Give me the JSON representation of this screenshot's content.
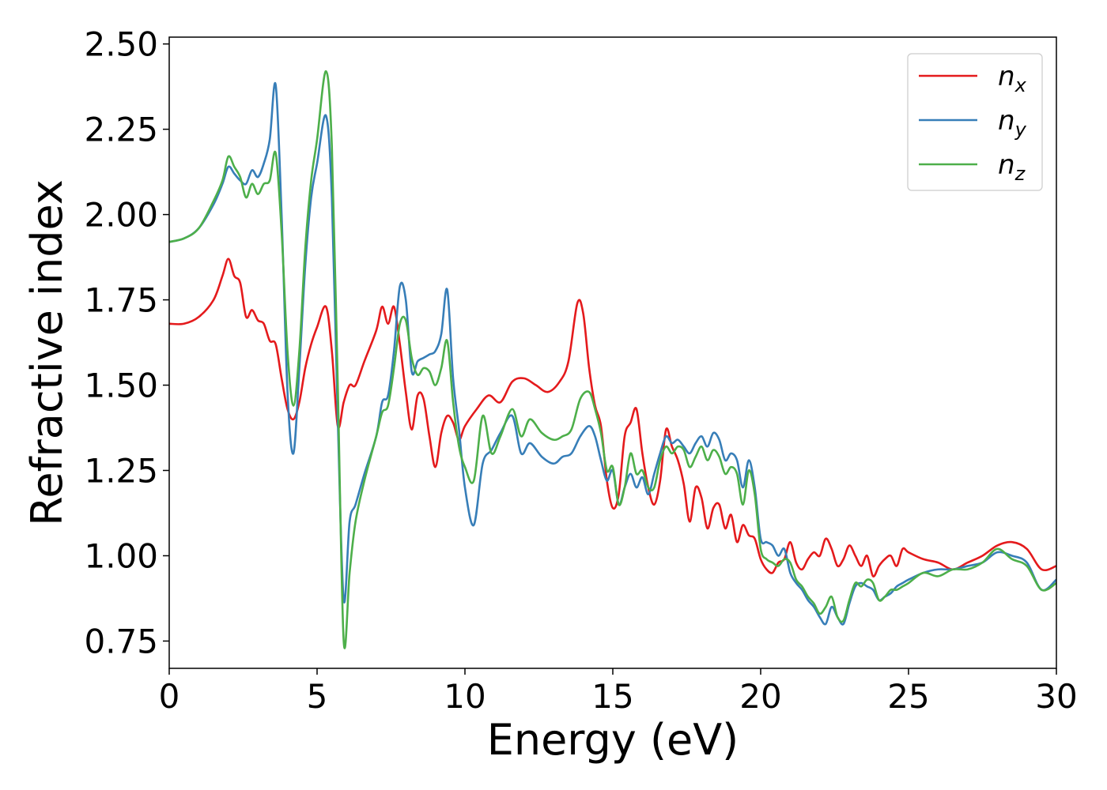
{
  "chart_data": {
    "type": "line",
    "xlabel": "Energy (eV)",
    "ylabel": "Refractive index",
    "xlim": [
      0,
      30
    ],
    "ylim": [
      0.67,
      2.52
    ],
    "xticks": [
      0,
      5,
      10,
      15,
      20,
      25,
      30
    ],
    "xtick_labels": [
      "0",
      "5",
      "10",
      "15",
      "20",
      "25",
      "30"
    ],
    "yticks": [
      0.75,
      1.0,
      1.25,
      1.5,
      1.75,
      2.0,
      2.25,
      2.5
    ],
    "ytick_labels": [
      "0.75",
      "1.00",
      "1.25",
      "1.50",
      "1.75",
      "2.00",
      "2.25",
      "2.50"
    ],
    "grid": false,
    "legend_position": "top-right",
    "series": [
      {
        "name": "n",
        "subscript": "x",
        "color": "#e41a1c",
        "x": [
          0,
          0.5,
          1.0,
          1.5,
          1.8,
          2.0,
          2.2,
          2.4,
          2.6,
          2.8,
          3.0,
          3.2,
          3.4,
          3.6,
          3.8,
          4.0,
          4.2,
          4.4,
          4.6,
          4.8,
          5.0,
          5.3,
          5.5,
          5.7,
          5.9,
          6.1,
          6.3,
          6.6,
          7.0,
          7.2,
          7.4,
          7.6,
          7.8,
          8.0,
          8.2,
          8.4,
          8.6,
          8.8,
          9.0,
          9.2,
          9.4,
          9.6,
          9.8,
          10.0,
          10.4,
          10.8,
          11.2,
          11.6,
          12.0,
          12.4,
          12.8,
          13.2,
          13.5,
          13.8,
          14.0,
          14.2,
          14.4,
          14.6,
          14.8,
          15.0,
          15.2,
          15.4,
          15.6,
          15.8,
          16.0,
          16.2,
          16.4,
          16.6,
          16.8,
          17.0,
          17.2,
          17.4,
          17.6,
          17.8,
          18.0,
          18.2,
          18.4,
          18.6,
          18.8,
          19.0,
          19.2,
          19.4,
          19.6,
          19.8,
          20.0,
          20.2,
          20.4,
          20.6,
          20.8,
          21.0,
          21.2,
          21.4,
          21.6,
          21.8,
          22.0,
          22.2,
          22.4,
          22.6,
          22.8,
          23.0,
          23.2,
          23.4,
          23.6,
          23.8,
          24.0,
          24.2,
          24.4,
          24.6,
          24.8,
          25.0,
          25.5,
          26.0,
          26.5,
          27.0,
          27.5,
          28.0,
          28.5,
          29.0,
          29.5,
          30.0
        ],
        "values": [
          1.68,
          1.68,
          1.7,
          1.75,
          1.82,
          1.87,
          1.82,
          1.8,
          1.7,
          1.72,
          1.69,
          1.68,
          1.63,
          1.62,
          1.52,
          1.43,
          1.4,
          1.45,
          1.55,
          1.62,
          1.67,
          1.73,
          1.6,
          1.38,
          1.45,
          1.5,
          1.5,
          1.57,
          1.66,
          1.73,
          1.68,
          1.73,
          1.62,
          1.48,
          1.37,
          1.47,
          1.46,
          1.35,
          1.26,
          1.36,
          1.41,
          1.39,
          1.34,
          1.38,
          1.43,
          1.47,
          1.45,
          1.51,
          1.52,
          1.5,
          1.48,
          1.51,
          1.57,
          1.74,
          1.71,
          1.55,
          1.44,
          1.38,
          1.22,
          1.14,
          1.18,
          1.35,
          1.39,
          1.43,
          1.3,
          1.2,
          1.15,
          1.22,
          1.37,
          1.32,
          1.28,
          1.21,
          1.1,
          1.2,
          1.17,
          1.08,
          1.14,
          1.15,
          1.08,
          1.12,
          1.04,
          1.09,
          1.06,
          1.05,
          0.99,
          0.96,
          0.95,
          0.98,
          0.99,
          1.04,
          0.98,
          0.96,
          0.99,
          1.01,
          1.0,
          1.05,
          1.02,
          0.97,
          0.99,
          1.03,
          1.0,
          0.97,
          1.0,
          0.94,
          0.97,
          0.99,
          1.0,
          0.97,
          1.02,
          1.01,
          0.99,
          0.98,
          0.96,
          0.98,
          1.0,
          1.03,
          1.04,
          1.02,
          0.96,
          0.97
        ]
      },
      {
        "name": "n",
        "subscript": "y",
        "color": "#377eb8",
        "x": [
          0,
          0.5,
          1.0,
          1.5,
          1.8,
          2.0,
          2.2,
          2.4,
          2.6,
          2.8,
          3.0,
          3.2,
          3.4,
          3.6,
          3.8,
          4.0,
          4.2,
          4.4,
          4.6,
          4.8,
          5.0,
          5.3,
          5.5,
          5.7,
          5.9,
          6.1,
          6.3,
          6.6,
          7.0,
          7.2,
          7.4,
          7.6,
          7.8,
          8.0,
          8.2,
          8.4,
          8.6,
          8.8,
          9.0,
          9.2,
          9.4,
          9.6,
          9.8,
          10.0,
          10.3,
          10.6,
          10.9,
          11.2,
          11.6,
          11.9,
          12.2,
          12.6,
          13.0,
          13.3,
          13.6,
          13.9,
          14.2,
          14.4,
          14.6,
          14.8,
          15.0,
          15.2,
          15.4,
          15.6,
          15.8,
          16.0,
          16.2,
          16.4,
          16.6,
          16.8,
          17.0,
          17.2,
          17.4,
          17.6,
          17.8,
          18.0,
          18.2,
          18.4,
          18.6,
          18.8,
          19.0,
          19.2,
          19.4,
          19.6,
          19.8,
          20.0,
          20.2,
          20.4,
          20.6,
          20.8,
          21.0,
          21.2,
          21.4,
          21.6,
          21.8,
          22.0,
          22.2,
          22.4,
          22.6,
          22.8,
          23.0,
          23.2,
          23.4,
          23.6,
          23.8,
          24.0,
          24.2,
          24.4,
          24.6,
          24.8,
          25.0,
          25.5,
          26.0,
          26.5,
          27.0,
          27.5,
          28.0,
          28.5,
          29.0,
          29.5,
          30.0
        ],
        "values": [
          1.92,
          1.93,
          1.96,
          2.03,
          2.09,
          2.14,
          2.12,
          2.1,
          2.09,
          2.13,
          2.11,
          2.15,
          2.22,
          2.38,
          2.0,
          1.48,
          1.3,
          1.55,
          1.85,
          2.05,
          2.15,
          2.29,
          2.05,
          1.4,
          0.87,
          1.1,
          1.15,
          1.24,
          1.35,
          1.45,
          1.47,
          1.6,
          1.79,
          1.75,
          1.54,
          1.57,
          1.58,
          1.59,
          1.6,
          1.65,
          1.78,
          1.52,
          1.37,
          1.2,
          1.09,
          1.27,
          1.31,
          1.36,
          1.41,
          1.3,
          1.33,
          1.29,
          1.27,
          1.29,
          1.3,
          1.35,
          1.38,
          1.35,
          1.28,
          1.22,
          1.25,
          1.15,
          1.2,
          1.24,
          1.2,
          1.23,
          1.18,
          1.24,
          1.3,
          1.35,
          1.33,
          1.34,
          1.32,
          1.3,
          1.33,
          1.35,
          1.32,
          1.36,
          1.34,
          1.28,
          1.3,
          1.28,
          1.2,
          1.28,
          1.2,
          1.05,
          1.04,
          1.03,
          1.0,
          1.02,
          0.95,
          0.92,
          0.9,
          0.87,
          0.85,
          0.82,
          0.8,
          0.85,
          0.82,
          0.8,
          0.86,
          0.91,
          0.92,
          0.91,
          0.9,
          0.87,
          0.88,
          0.89,
          0.91,
          0.92,
          0.93,
          0.95,
          0.96,
          0.96,
          0.97,
          0.98,
          1.01,
          1.0,
          0.98,
          0.9,
          0.93
        ]
      },
      {
        "name": "n",
        "subscript": "z",
        "color": "#4daf4a",
        "x": [
          0,
          0.5,
          1.0,
          1.5,
          1.8,
          2.0,
          2.2,
          2.4,
          2.6,
          2.8,
          3.0,
          3.2,
          3.4,
          3.6,
          3.8,
          4.0,
          4.2,
          4.4,
          4.6,
          4.8,
          5.0,
          5.3,
          5.5,
          5.7,
          5.9,
          6.1,
          6.3,
          6.6,
          7.0,
          7.2,
          7.4,
          7.6,
          7.8,
          8.0,
          8.2,
          8.4,
          8.6,
          8.8,
          9.0,
          9.2,
          9.4,
          9.6,
          9.8,
          10.0,
          10.3,
          10.6,
          10.9,
          11.2,
          11.6,
          11.9,
          12.2,
          12.6,
          13.0,
          13.3,
          13.6,
          13.9,
          14.2,
          14.4,
          14.6,
          14.8,
          15.0,
          15.2,
          15.4,
          15.6,
          15.8,
          16.0,
          16.2,
          16.4,
          16.6,
          16.8,
          17.0,
          17.2,
          17.4,
          17.6,
          17.8,
          18.0,
          18.2,
          18.4,
          18.6,
          18.8,
          19.0,
          19.2,
          19.4,
          19.6,
          19.8,
          20.0,
          20.2,
          20.4,
          20.6,
          20.8,
          21.0,
          21.2,
          21.4,
          21.6,
          21.8,
          22.0,
          22.2,
          22.4,
          22.6,
          22.8,
          23.0,
          23.2,
          23.4,
          23.6,
          23.8,
          24.0,
          24.2,
          24.4,
          24.6,
          24.8,
          25.0,
          25.5,
          26.0,
          26.5,
          27.0,
          27.5,
          28.0,
          28.5,
          29.0,
          29.5,
          30.0
        ],
        "values": [
          1.92,
          1.93,
          1.96,
          2.04,
          2.1,
          2.17,
          2.14,
          2.11,
          2.05,
          2.09,
          2.06,
          2.09,
          2.1,
          2.18,
          1.95,
          1.6,
          1.44,
          1.6,
          1.9,
          2.1,
          2.22,
          2.42,
          2.2,
          1.5,
          0.75,
          0.95,
          1.1,
          1.22,
          1.35,
          1.42,
          1.44,
          1.55,
          1.68,
          1.69,
          1.58,
          1.53,
          1.55,
          1.54,
          1.5,
          1.55,
          1.63,
          1.45,
          1.32,
          1.26,
          1.22,
          1.41,
          1.3,
          1.35,
          1.43,
          1.35,
          1.4,
          1.36,
          1.34,
          1.35,
          1.37,
          1.46,
          1.48,
          1.43,
          1.36,
          1.25,
          1.26,
          1.15,
          1.2,
          1.3,
          1.24,
          1.25,
          1.2,
          1.2,
          1.28,
          1.32,
          1.3,
          1.32,
          1.31,
          1.26,
          1.29,
          1.32,
          1.28,
          1.31,
          1.29,
          1.24,
          1.26,
          1.24,
          1.15,
          1.25,
          1.18,
          1.02,
          0.99,
          0.98,
          0.97,
          0.99,
          0.98,
          0.93,
          0.91,
          0.88,
          0.86,
          0.83,
          0.85,
          0.88,
          0.82,
          0.81,
          0.87,
          0.92,
          0.91,
          0.93,
          0.92,
          0.87,
          0.88,
          0.9,
          0.9,
          0.91,
          0.92,
          0.95,
          0.94,
          0.96,
          0.96,
          0.98,
          1.02,
          0.99,
          0.97,
          0.9,
          0.92
        ]
      }
    ]
  }
}
